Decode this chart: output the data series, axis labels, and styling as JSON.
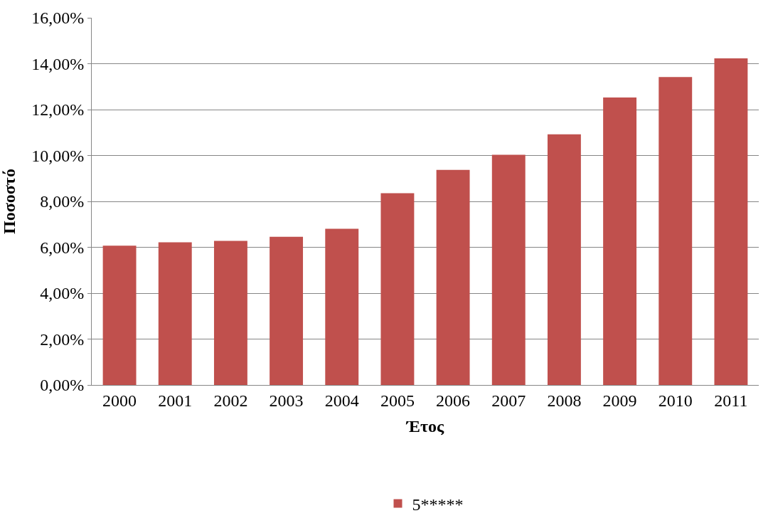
{
  "chart_data": {
    "type": "bar",
    "xlabel": "Έτος",
    "ylabel": "Ποσοστό",
    "categories": [
      "2000",
      "2001",
      "2002",
      "2003",
      "2004",
      "2005",
      "2006",
      "2007",
      "2008",
      "2009",
      "2010",
      "2011"
    ],
    "series": [
      {
        "name": "5*****",
        "color": "#c0504d",
        "values": [
          6.07,
          6.22,
          6.28,
          6.46,
          6.81,
          8.36,
          9.37,
          10.03,
          10.92,
          12.53,
          13.42,
          14.23
        ]
      }
    ],
    "ylim": [
      0,
      16
    ],
    "yticks": [
      {
        "value": 0,
        "label": "0,00%"
      },
      {
        "value": 2,
        "label": "2,00%"
      },
      {
        "value": 4,
        "label": "4,00%"
      },
      {
        "value": 6,
        "label": "6,00%"
      },
      {
        "value": 8,
        "label": "8,00%"
      },
      {
        "value": 10,
        "label": "10,00%"
      },
      {
        "value": 12,
        "label": "12,00%"
      },
      {
        "value": 14,
        "label": "14,00%"
      },
      {
        "value": 16,
        "label": "16,00%"
      }
    ],
    "grid": "y",
    "legend": "bottom"
  }
}
